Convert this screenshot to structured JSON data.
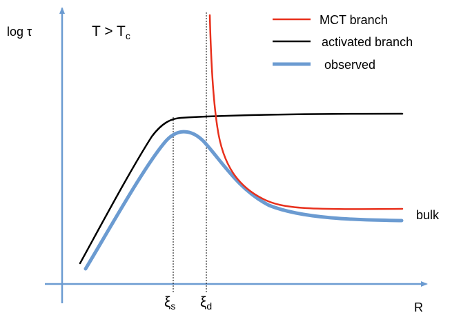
{
  "figure": {
    "ylabel": "log τ",
    "condition_main": "T > T",
    "condition_sub": "c",
    "xlabel": "R",
    "xi_s_main": "ξ",
    "xi_s_sub": "s",
    "xi_d_main": "ξ",
    "xi_d_sub": "d",
    "bulk_label": "bulk"
  },
  "legend": {
    "items": [
      {
        "label": "MCT branch",
        "color": "#e8301c"
      },
      {
        "label": "activated branch",
        "color": "#000000"
      },
      {
        "label": "observed",
        "color": "#6b9bd1"
      }
    ]
  },
  "colors": {
    "axis": "#6b9bd1",
    "mct": "#e8301c",
    "activated": "#000000",
    "observed": "#6b9bd1",
    "guide": "#000000"
  }
}
